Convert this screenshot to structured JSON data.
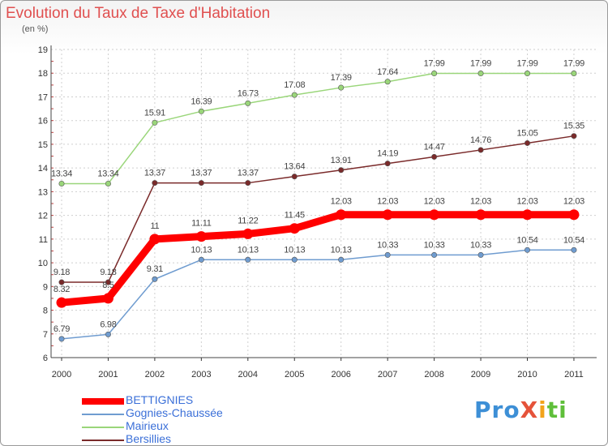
{
  "title": "Evolution du Taux de Taxe d'Habitation",
  "subtitle": "(en %)",
  "logo": "ProXiti",
  "logo_parts": [
    "Pro",
    "X",
    "i",
    "ti"
  ],
  "chart_data": {
    "type": "line",
    "x": [
      "2000",
      "2001",
      "2002",
      "2003",
      "2004",
      "2005",
      "2006",
      "2007",
      "2008",
      "2009",
      "2010",
      "2011"
    ],
    "ylim": [
      6,
      19
    ],
    "yticks": [
      "6",
      "7",
      "8",
      "9",
      "10",
      "11",
      "12",
      "13",
      "14",
      "15",
      "16",
      "17",
      "18",
      "19"
    ],
    "grid": true,
    "legend_position": "bottom-left",
    "series": [
      {
        "name": "BETTIGNIES",
        "color": "#ff0000",
        "values": [
          8.32,
          8.5,
          11,
          11.11,
          11.22,
          11.45,
          12.03,
          12.03,
          12.03,
          12.03,
          12.03,
          12.03
        ],
        "labels": [
          "8.32",
          "8.5",
          "11",
          "11.11",
          "11.22",
          "11.45",
          "12.03",
          "12.03",
          "12.03",
          "12.03",
          "12.03",
          "12.03"
        ]
      },
      {
        "name": "Gognies-Chaussée",
        "color": "#6f9cd0",
        "values": [
          6.79,
          6.98,
          9.31,
          10.13,
          10.13,
          10.13,
          10.13,
          10.33,
          10.33,
          10.33,
          10.54,
          10.54
        ],
        "labels": [
          "6.79",
          "6.98",
          "9.31",
          "10.13",
          "10.13",
          "10.13",
          "10.13",
          "10.33",
          "10.33",
          "10.33",
          "10.54",
          "10.54"
        ]
      },
      {
        "name": "Mairieux",
        "color": "#9ad67a",
        "values": [
          13.34,
          13.34,
          15.91,
          16.39,
          16.73,
          17.08,
          17.39,
          17.64,
          17.99,
          17.99,
          17.99,
          17.99
        ],
        "labels": [
          "13.34",
          "13.34",
          "15.91",
          "16.39",
          "16.73",
          "17.08",
          "17.39",
          "17.64",
          "17.99",
          "17.99",
          "17.99",
          "17.99"
        ]
      },
      {
        "name": "Bersillies",
        "color": "#7a2a2a",
        "values": [
          9.18,
          9.18,
          13.37,
          13.37,
          13.37,
          13.64,
          13.91,
          14.19,
          14.47,
          14.76,
          15.05,
          15.35
        ],
        "labels": [
          "9.18",
          "9.18",
          "13.37",
          "13.37",
          "13.37",
          "13.64",
          "13.91",
          "14.19",
          "14.47",
          "14.76",
          "15.05",
          "15.35"
        ]
      }
    ]
  }
}
